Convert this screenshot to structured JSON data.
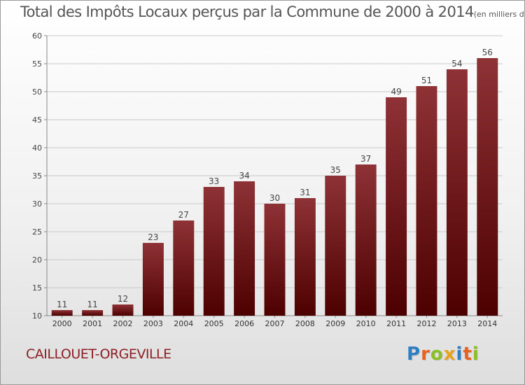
{
  "header": {
    "title": "Total des Impôts Locaux perçus par la Commune de 2000 à 2014",
    "unit": "(en milliers d'€)"
  },
  "footer": {
    "commune": "CAILLOUET-ORGEVILLE",
    "brand": "Proxiti"
  },
  "colors": {
    "bar_top": "#8e3236",
    "bar_bottom": "#4d0000",
    "commune_text": "#8c1f24",
    "logo": [
      "#2e7fc4",
      "#e8621f",
      "#8cbf26",
      "#e8a21f",
      "#2e7fc4",
      "#e8621f",
      "#8cbf26"
    ]
  },
  "chart_data": {
    "type": "bar",
    "title": "Total des Impôts Locaux perçus par la Commune de 2000 à 2014",
    "subtitle": "(en milliers d'€)",
    "xlabel": "",
    "ylabel": "",
    "categories": [
      "2000",
      "2001",
      "2002",
      "2003",
      "2004",
      "2005",
      "2006",
      "2007",
      "2008",
      "2009",
      "2010",
      "2011",
      "2012",
      "2013",
      "2014"
    ],
    "values": [
      11,
      11,
      12,
      23,
      27,
      33,
      34,
      30,
      31,
      35,
      37,
      49,
      51,
      54,
      56
    ],
    "ylim": [
      10,
      60
    ],
    "yticks": [
      10,
      15,
      20,
      25,
      30,
      35,
      40,
      45,
      50,
      55,
      60
    ],
    "grid": true,
    "data_labels": true
  }
}
